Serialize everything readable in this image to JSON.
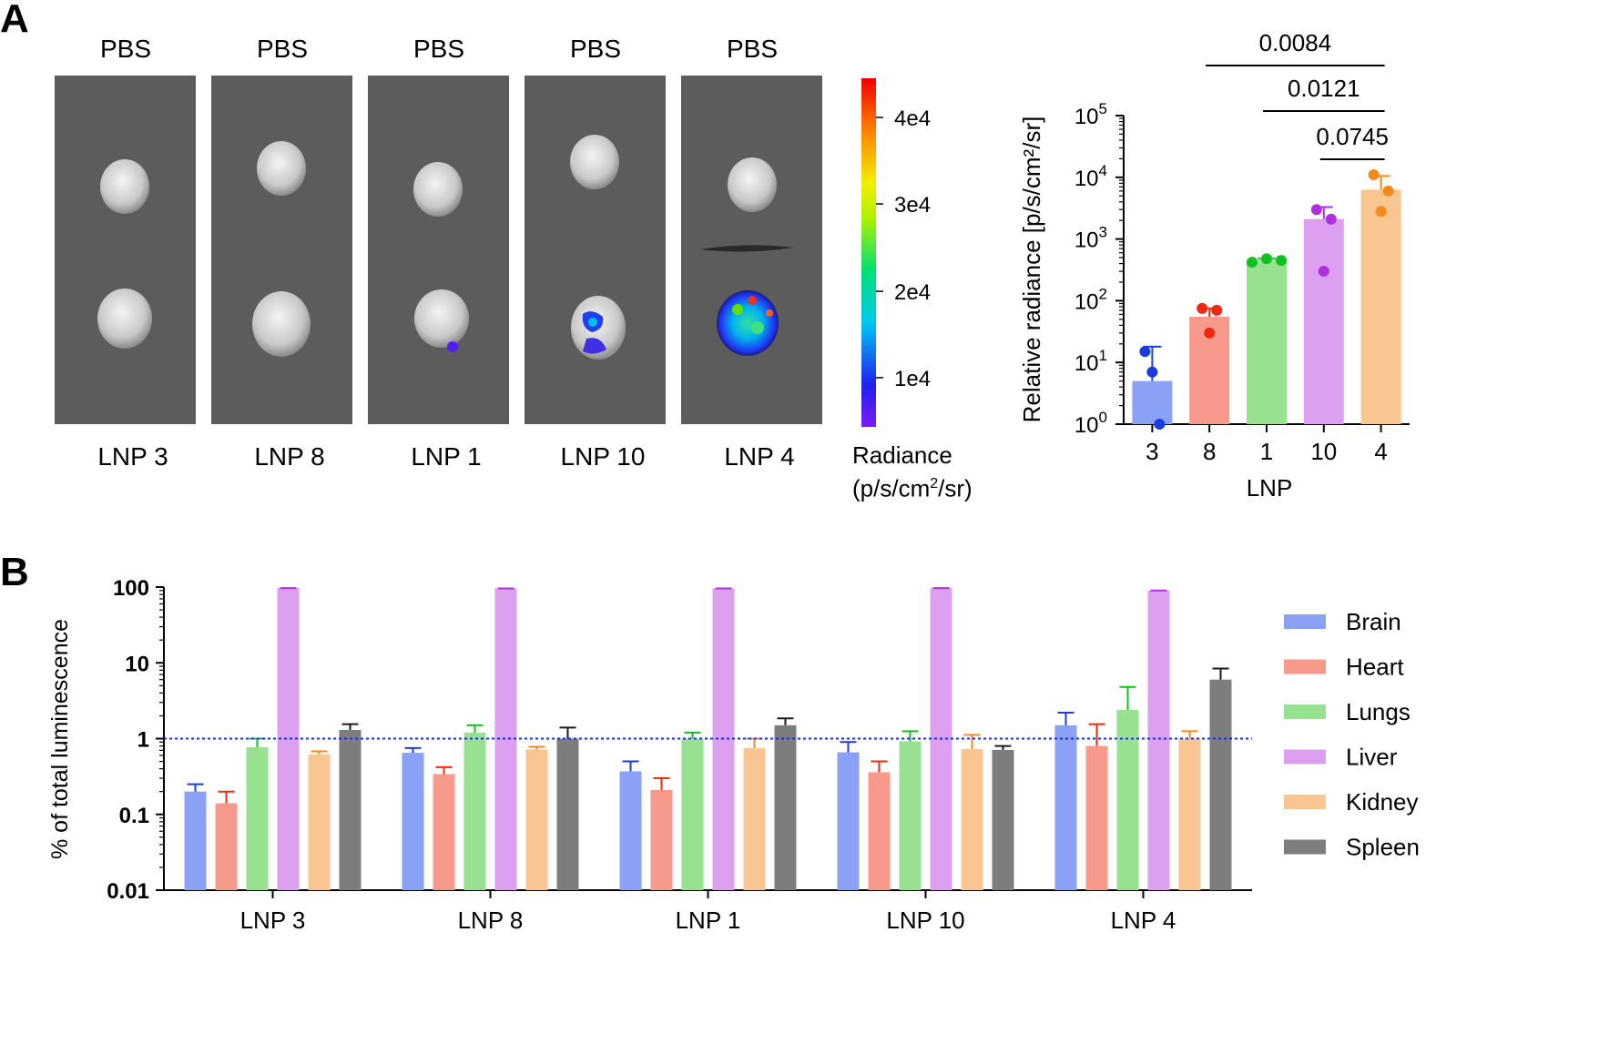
{
  "panel_labels": [
    "A",
    "B"
  ],
  "imaging": {
    "top_labels": [
      "PBS",
      "PBS",
      "PBS",
      "PBS",
      "PBS"
    ],
    "bottom_labels": [
      "LNP 3",
      "LNP 8",
      "LNP 1",
      "LNP 10",
      "LNP 4"
    ]
  },
  "colorbar": {
    "ticks": [
      "4e4",
      "3e4",
      "2e4",
      "1e4"
    ],
    "title_line1": "Radiance",
    "title_line2_pre": "(p/s/cm",
    "title_line2_sup": "2",
    "title_line2_post": "/sr)"
  },
  "chart_data": [
    {
      "type": "bar",
      "yscale": "log",
      "ylabel": "Relative radiance [p/s/cm²/sr]",
      "xlabel": "LNP",
      "categories": [
        "3",
        "8",
        "1",
        "10",
        "4"
      ],
      "values": [
        5,
        55,
        450,
        2100,
        6300
      ],
      "error_upper": [
        18,
        75,
        480,
        3300,
        10500
      ],
      "points": [
        [
          15,
          7,
          1
        ],
        [
          75,
          30,
          70
        ],
        [
          420,
          480,
          450
        ],
        [
          3000,
          300,
          2100
        ],
        [
          11000,
          2800,
          6000
        ]
      ],
      "colors": [
        "#8ba1f5",
        "#f7998b",
        "#98e190",
        "#dda0f0",
        "#f9c590"
      ],
      "point_colors": [
        "#1a3de0",
        "#f02810",
        "#10c020",
        "#b030e0",
        "#f58a18"
      ],
      "ylim": [
        1,
        100000
      ],
      "ytick_exponents": [
        "0",
        "1",
        "2",
        "3",
        "4",
        "5"
      ],
      "ytick_base": "10",
      "significance": [
        {
          "from": "8",
          "to": "4",
          "label": "0.0084"
        },
        {
          "from": "1",
          "to": "4",
          "label": "0.0121"
        },
        {
          "from": "10",
          "to": "4",
          "label": "0.0745"
        }
      ]
    },
    {
      "type": "bar",
      "yscale": "log",
      "ylabel": "% of total luminescence",
      "categories": [
        "LNP 3",
        "LNP 8",
        "LNP 1",
        "LNP 10",
        "LNP 4"
      ],
      "yticks": [
        "0.01",
        "0.1",
        "1",
        "10",
        "100"
      ],
      "ylim": [
        0.01,
        100
      ],
      "reference_line": 1,
      "legend_position": "right",
      "series": [
        {
          "name": "Brain",
          "color": "#8ba1f5",
          "err_color": "#1a3de0",
          "values": [
            0.2,
            0.65,
            0.37,
            0.66,
            1.5
          ],
          "error_upper": [
            0.25,
            0.75,
            0.5,
            0.9,
            2.2
          ]
        },
        {
          "name": "Heart",
          "color": "#f7998b",
          "err_color": "#f02810",
          "values": [
            0.14,
            0.34,
            0.21,
            0.36,
            0.8
          ],
          "error_upper": [
            0.2,
            0.42,
            0.3,
            0.5,
            1.55
          ]
        },
        {
          "name": "Lungs",
          "color": "#98e190",
          "err_color": "#10c020",
          "values": [
            0.77,
            1.2,
            1.0,
            0.92,
            2.4
          ],
          "error_upper": [
            1.0,
            1.5,
            1.2,
            1.25,
            4.8
          ]
        },
        {
          "name": "Liver",
          "color": "#dda0f0",
          "err_color": "#b030e0",
          "values": [
            97,
            96,
            96,
            97,
            90
          ],
          "error_upper": [
            97,
            96,
            96,
            97,
            90
          ]
        },
        {
          "name": "Kidney",
          "color": "#f9c590",
          "err_color": "#f58a18",
          "values": [
            0.62,
            0.72,
            0.75,
            0.73,
            1.0
          ],
          "error_upper": [
            0.68,
            0.78,
            1.0,
            1.12,
            1.25
          ]
        },
        {
          "name": "Spleen",
          "color": "#7d7d7d",
          "err_color": "#1a1a1a",
          "values": [
            1.3,
            1.0,
            1.5,
            0.71,
            6.0
          ],
          "error_upper": [
            1.55,
            1.4,
            1.85,
            0.8,
            8.4
          ]
        }
      ]
    }
  ]
}
